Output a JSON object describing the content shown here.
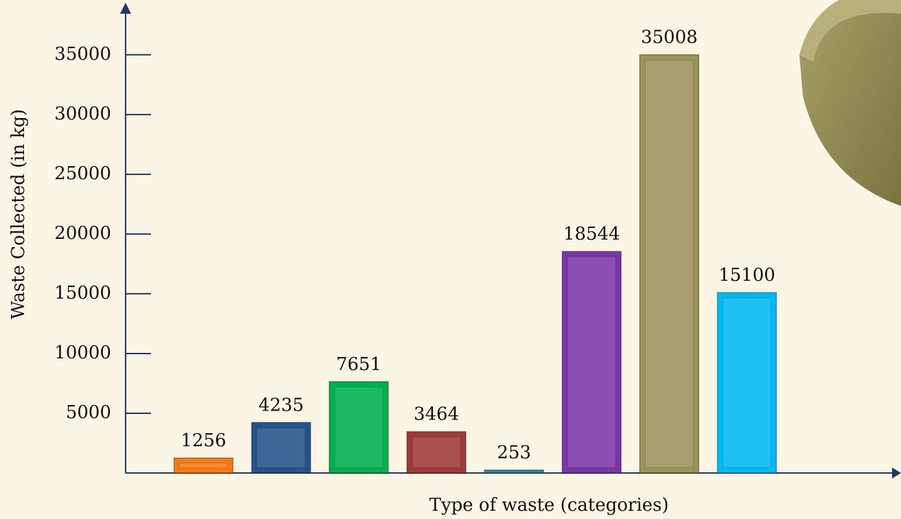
{
  "chart_data": {
    "type": "bar",
    "x_label": "Type of waste (categories)",
    "y_label": "Waste Collected (in kg)",
    "categories": [
      null,
      null,
      null,
      null,
      null,
      null,
      null,
      null
    ],
    "values": [
      1256,
      4235,
      7651,
      3464,
      253,
      18544,
      35008,
      15100
    ],
    "colors": [
      "#f57a14",
      "#24528a",
      "#00b050",
      "#9e3a3a",
      "#2d8aa6",
      "#7a36a8",
      "#9b935a",
      "#00b8f2"
    ],
    "ylim": [
      0,
      37000
    ],
    "yticks": [
      5000,
      10000,
      15000,
      20000,
      25000,
      30000,
      35000
    ]
  }
}
